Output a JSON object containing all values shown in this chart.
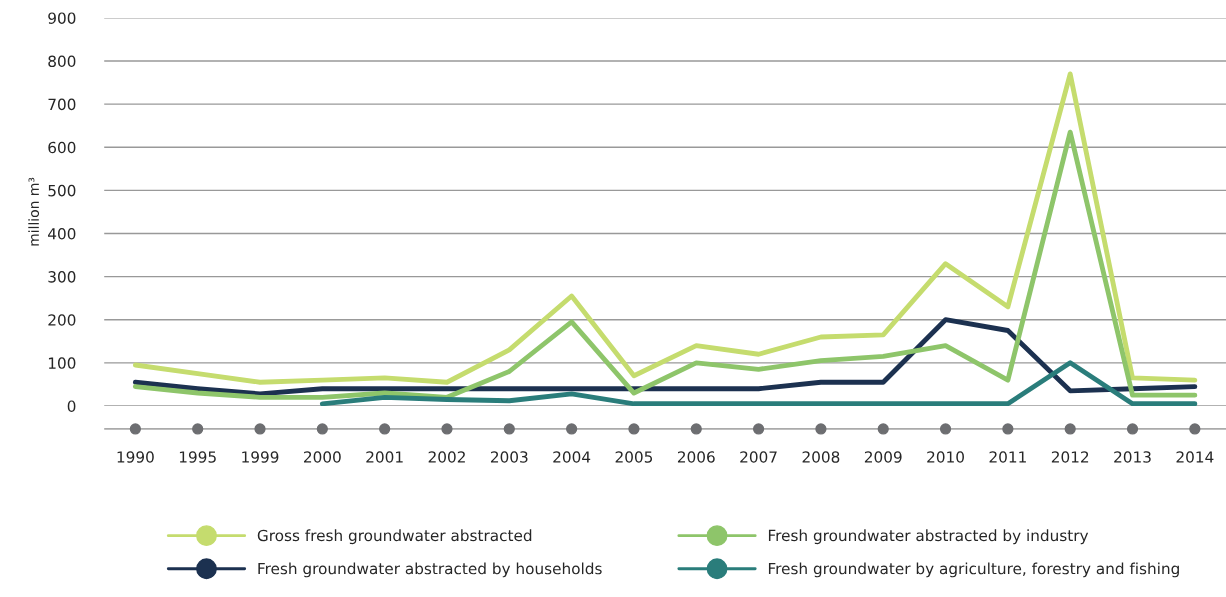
{
  "chart_data": {
    "type": "line",
    "ylabel": "million m³",
    "categories": [
      "1990",
      "1995",
      "1999",
      "2000",
      "2001",
      "2002",
      "2003",
      "2004",
      "2005",
      "2006",
      "2007",
      "2008",
      "2009",
      "2010",
      "2011",
      "2012",
      "2013",
      "2014"
    ],
    "series": [
      {
        "name": "Gross fresh groundwater abstracted",
        "color": "#c5dc6e",
        "values": [
          95,
          75,
          55,
          60,
          65,
          55,
          130,
          255,
          70,
          140,
          120,
          160,
          165,
          330,
          230,
          770,
          65,
          60
        ]
      },
      {
        "name": "Fresh groundwater abstracted by households",
        "color": "#1c3150",
        "values": [
          55,
          40,
          28,
          40,
          40,
          40,
          40,
          40,
          40,
          40,
          40,
          55,
          55,
          200,
          175,
          35,
          40,
          45
        ]
      },
      {
        "name": "Fresh groundwater abstracted by industry",
        "color": "#8ec56a",
        "values": [
          45,
          30,
          20,
          20,
          30,
          20,
          80,
          195,
          30,
          100,
          85,
          105,
          115,
          140,
          60,
          635,
          25,
          25
        ]
      },
      {
        "name": "Fresh groundwater by agriculture, forestry and fishing",
        "color": "#2a7d7b",
        "values": [
          null,
          null,
          null,
          5,
          20,
          15,
          12,
          28,
          5,
          5,
          5,
          5,
          5,
          5,
          5,
          100,
          5,
          5
        ]
      }
    ],
    "ylim": [
      0,
      900
    ],
    "yticks": [
      0,
      100,
      200,
      300,
      400,
      500,
      600,
      700,
      800,
      900
    ],
    "grid": "y",
    "legend": "bottom",
    "marker": "none",
    "line_style": "solid"
  }
}
